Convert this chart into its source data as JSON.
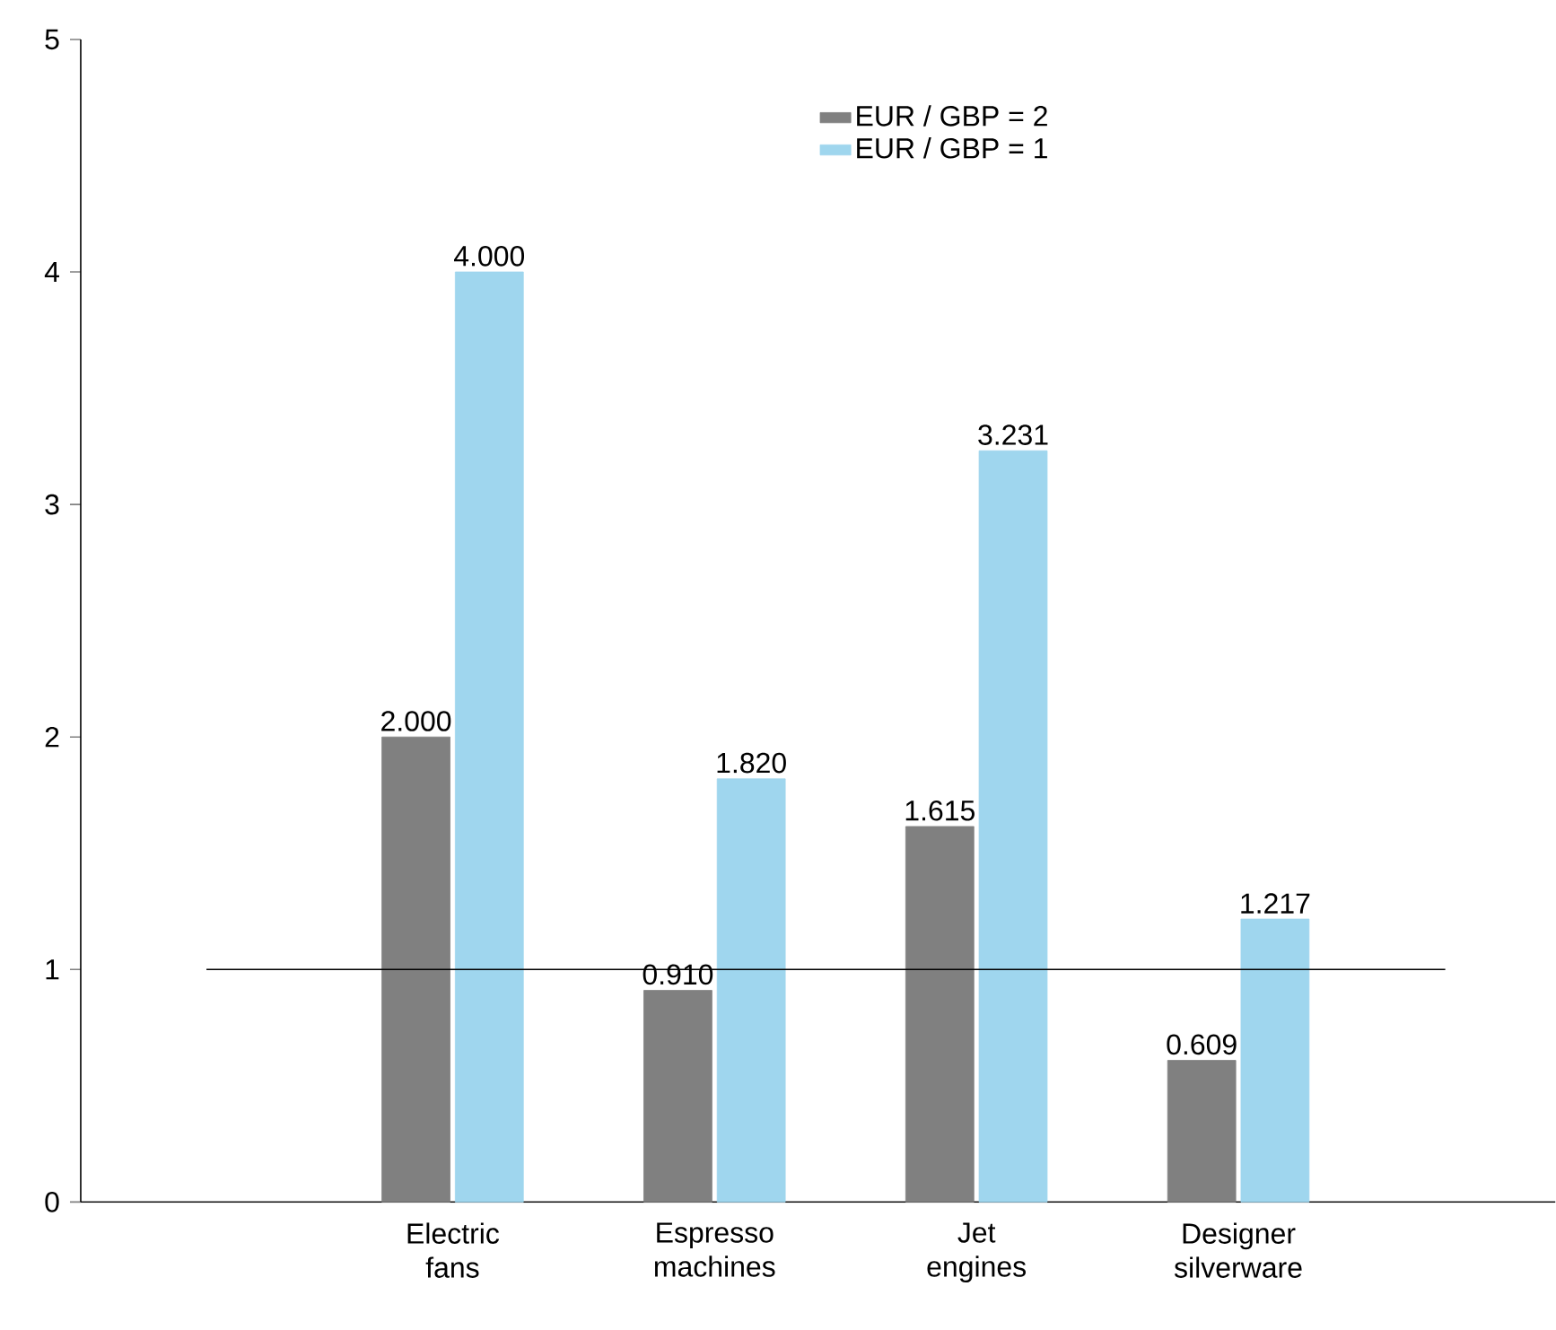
{
  "chart_data": {
    "type": "bar",
    "categories": [
      "Electric fans",
      "Espresso machines",
      "Jet engines",
      "Designer silverware"
    ],
    "series": [
      {
        "name": "EUR / GBP = 2",
        "color": "#808080",
        "values": [
          2.0,
          0.91,
          1.615,
          0.609
        ],
        "value_labels": [
          "2.000",
          "0.910",
          "1.615",
          "0.609"
        ]
      },
      {
        "name": "EUR / GBP = 1",
        "color": "#9fd6ee",
        "values": [
          4.0,
          1.82,
          3.231,
          1.217
        ],
        "value_labels": [
          "4.000",
          "1.820",
          "3.231",
          "1.217"
        ]
      }
    ],
    "ylim": [
      0,
      5
    ],
    "yticks": [
      0,
      1,
      2,
      3,
      4,
      5
    ],
    "ref_lines": [
      {
        "axis": "y",
        "value": 1
      }
    ],
    "legend": "top",
    "grid": false
  }
}
